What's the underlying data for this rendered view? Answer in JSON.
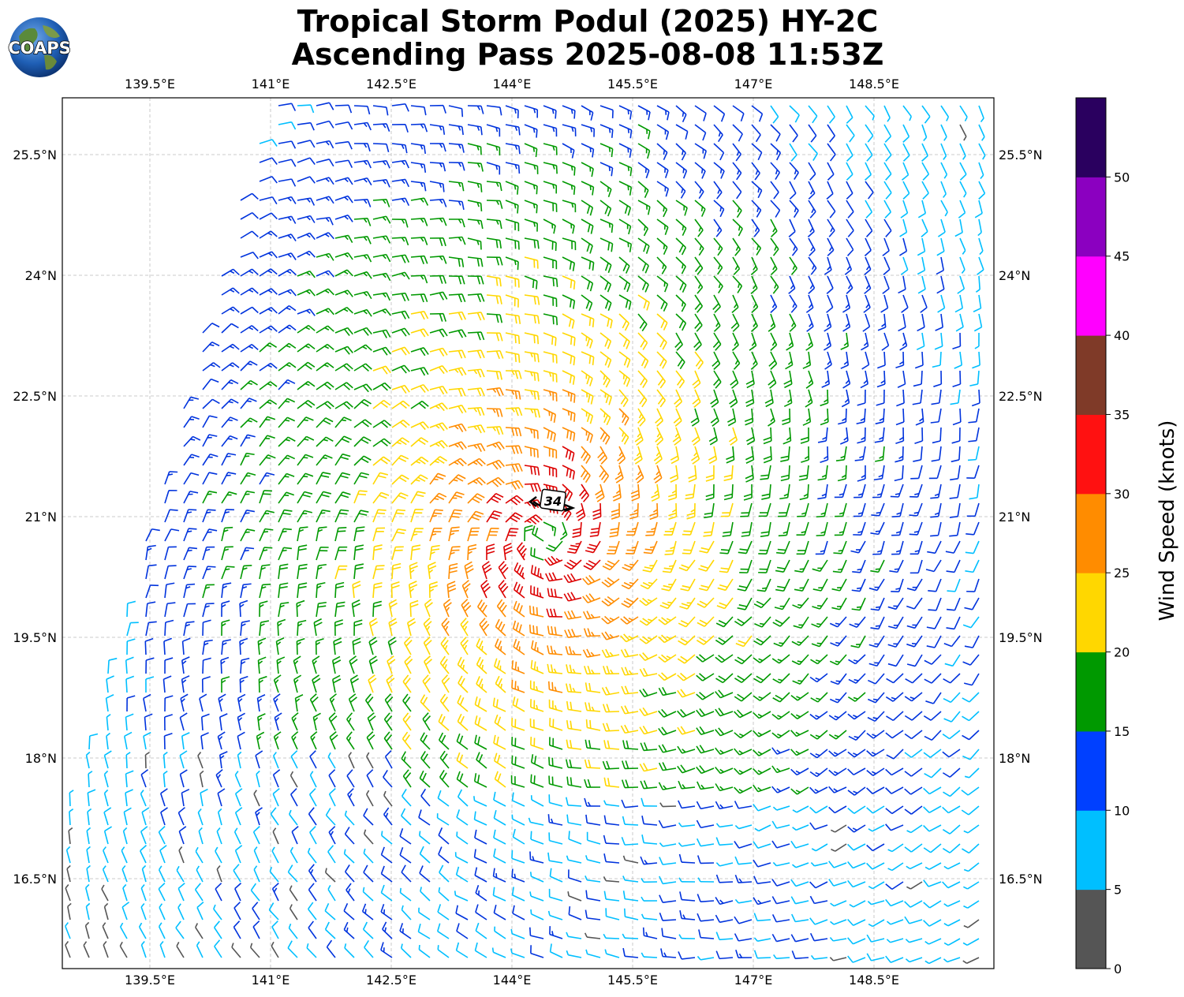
{
  "title_line1": "Tropical Storm Podul (2025) HY-2C",
  "title_line2": "Ascending Pass 2025-08-08 11:53Z",
  "logo_text": "COAPS",
  "map": {
    "lon_ticks": [
      "139.5°E",
      "141°E",
      "142.5°E",
      "144°E",
      "145.5°E",
      "147°E",
      "148.5°E"
    ],
    "lat_ticks": [
      "25.5°N",
      "24°N",
      "22.5°N",
      "21°N",
      "19.5°N",
      "18°N",
      "16.5°N"
    ],
    "storm_marker_label": "34"
  },
  "colorbar": {
    "label": "Wind Speed (knots)",
    "ticks": [
      "0",
      "5",
      "10",
      "15",
      "20",
      "25",
      "30",
      "35",
      "40",
      "45",
      "50"
    ],
    "colors": [
      "#555555",
      "#00bfff",
      "#0040ff",
      "#009900",
      "#ffd700",
      "#ff8c00",
      "#ff1111",
      "#7f3a28",
      "#ff00ff",
      "#8b00c0",
      "#2a005f"
    ]
  },
  "colors": {
    "calm": "#555555",
    "light": "#00bfff",
    "moderate": "#0033dd",
    "fresh": "#009900",
    "strong": "#ffd700",
    "gale": "#ff8c00",
    "storm": "#dd0000"
  }
}
